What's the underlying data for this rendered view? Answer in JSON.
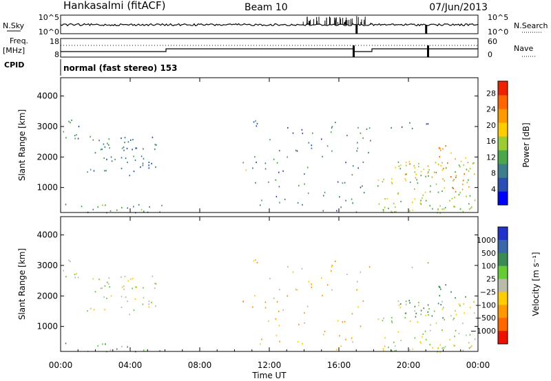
{
  "header": {
    "station": "Hankasalmi (fitACF)",
    "beam": "Beam 10",
    "date": "07/Jun/2013"
  },
  "noise_panel": {
    "left_label": "N.Sky",
    "right_label": "N.Search",
    "ticks": [
      "10^5",
      "10^0"
    ]
  },
  "freq_panel": {
    "left_label_1": "Freq.",
    "left_label_2": "[MHz]",
    "left_ticks": [
      "18",
      "8"
    ],
    "right_label": "Nave",
    "right_ticks": [
      "60",
      "0"
    ]
  },
  "cpid": {
    "label": "CPID",
    "mode": "normal (fast stereo) 153"
  },
  "power_panel": {
    "ylabel": "Slant Range [km]",
    "yticks": [
      "4000",
      "3000",
      "2000",
      "1000"
    ],
    "colorbar_label": "Power [dB]",
    "colorbar_ticks": [
      "28",
      "24",
      "20",
      "16",
      "12",
      "8",
      "4"
    ]
  },
  "velocity_panel": {
    "ylabel": "Slant Range [km]",
    "yticks": [
      "4000",
      "3000",
      "2000",
      "1000"
    ],
    "colorbar_label": "Velocity [m s⁻¹]",
    "colorbar_ticks": [
      "1000",
      "500",
      "100",
      "25",
      "−25",
      "−100",
      "−500",
      "−1000"
    ]
  },
  "xaxis": {
    "label": "Time UT",
    "ticks": [
      "00:00",
      "04:00",
      "08:00",
      "12:00",
      "16:00",
      "20:00",
      "00:00"
    ]
  },
  "colors": {
    "power_scale": [
      "#0000ff",
      "#2a4fb4",
      "#3a7f8a",
      "#4aa84a",
      "#9ccc33",
      "#ffcc00",
      "#ff9900",
      "#ff6600",
      "#ee2200"
    ],
    "velocity_scale": [
      "#2233cc",
      "#3a66aa",
      "#3a8a55",
      "#66cc33",
      "#bbbbaa",
      "#ffcc00",
      "#ff9900",
      "#ff6600",
      "#ee1100"
    ]
  },
  "chart_data": [
    {
      "type": "heatmap",
      "title": "Power",
      "xlabel": "Time UT",
      "ylabel": "Slant Range [km]",
      "xlim": [
        "00:00",
        "24:00"
      ],
      "ylim": [
        180,
        4600
      ],
      "colorbar": {
        "label": "Power [dB]",
        "range": [
          0,
          31
        ],
        "ticks": [
          4,
          8,
          12,
          16,
          20,
          24,
          28
        ]
      },
      "echo_regions": [
        {
          "t_start": 0.0,
          "t_end": 1.2,
          "r_start": 2500,
          "r_end": 3250,
          "power_db": 8
        },
        {
          "t_start": 1.5,
          "t_end": 5.5,
          "r_start": 1400,
          "r_end": 2700,
          "power_db": 8
        },
        {
          "t_start": 0.0,
          "t_end": 5.9,
          "r_start": 180,
          "r_end": 500,
          "power_db": 10
        },
        {
          "t_start": 10.4,
          "t_end": 10.9,
          "r_start": 1550,
          "r_end": 1900,
          "power_db": 16
        },
        {
          "t_start": 11.0,
          "t_end": 17.8,
          "r_start": 180,
          "r_end": 3300,
          "power_db": 8
        },
        {
          "t_start": 18.2,
          "t_end": 23.9,
          "r_start": 180,
          "r_end": 1900,
          "power_db": 14
        },
        {
          "t_start": 19.0,
          "t_end": 22.0,
          "r_start": 1300,
          "r_end": 1900,
          "power_db": 22
        },
        {
          "t_start": 21.5,
          "t_end": 23.5,
          "r_start": 1800,
          "r_end": 2400,
          "power_db": 24
        },
        {
          "t_start": 22.4,
          "t_end": 23.5,
          "r_start": 800,
          "r_end": 1500,
          "power_db": 24
        },
        {
          "t_start": 18.3,
          "t_end": 21.2,
          "r_start": 2950,
          "r_end": 3150,
          "power_db": 6
        }
      ]
    },
    {
      "type": "heatmap",
      "title": "Velocity",
      "xlabel": "Time UT",
      "ylabel": "Slant Range [km]",
      "xlim": [
        "00:00",
        "24:00"
      ],
      "ylim": [
        180,
        4600
      ],
      "colorbar": {
        "label": "Velocity [m s⁻¹]",
        "ticks": [
          1000,
          500,
          100,
          25,
          -25,
          -100,
          -500,
          -1000
        ]
      },
      "echo_regions": [
        {
          "t_start": 0.0,
          "t_end": 1.2,
          "r_start": 2500,
          "r_end": 3250,
          "velocity": 0
        },
        {
          "t_start": 1.5,
          "t_end": 5.5,
          "r_start": 1400,
          "r_end": 2700,
          "velocity": 0
        },
        {
          "t_start": 0.0,
          "t_end": 5.9,
          "r_start": 180,
          "r_end": 500,
          "velocity": 60
        },
        {
          "t_start": 10.4,
          "t_end": 10.9,
          "r_start": 1550,
          "r_end": 1900,
          "velocity": -300
        },
        {
          "t_start": 11.0,
          "t_end": 17.8,
          "r_start": 180,
          "r_end": 3300,
          "velocity": -50
        },
        {
          "t_start": 18.2,
          "t_end": 23.9,
          "r_start": 180,
          "r_end": 1900,
          "velocity": 0
        },
        {
          "t_start": 19.2,
          "t_end": 21.0,
          "r_start": 1200,
          "r_end": 1500,
          "velocity": 80
        },
        {
          "t_start": 22.8,
          "t_end": 23.7,
          "r_start": 1000,
          "r_end": 1500,
          "velocity": 150
        },
        {
          "t_start": 18.3,
          "t_end": 21.2,
          "r_start": 2950,
          "r_end": 3150,
          "velocity": 0
        }
      ]
    }
  ]
}
